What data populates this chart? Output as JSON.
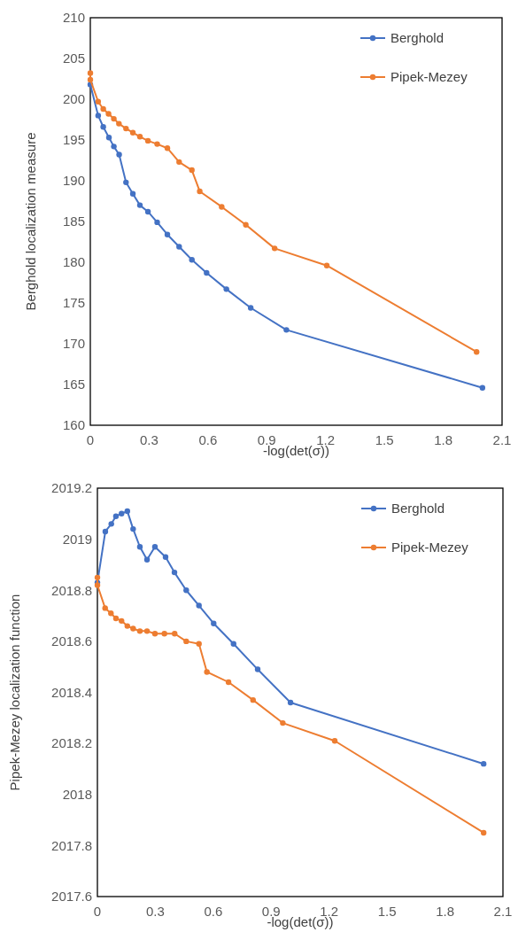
{
  "chart_data": [
    {
      "type": "line",
      "xlabel": "-log(det(σ))",
      "ylabel": "Berghold localization measure",
      "xlim": [
        0,
        2.1
      ],
      "xticks": [
        0,
        0.3,
        0.6,
        0.9,
        1.2,
        1.5,
        1.8,
        2.1
      ],
      "ylim": [
        160,
        210
      ],
      "yticks": [
        160,
        165,
        170,
        175,
        180,
        185,
        190,
        195,
        200,
        205,
        210
      ],
      "grid": false,
      "legend": "top right",
      "marker": "circle",
      "line_style": "solid",
      "series": [
        {
          "name": "Berghold",
          "color": "#4472c4",
          "x": [
            0,
            0.04,
            0.066,
            0.095,
            0.12,
            0.147,
            0.182,
            0.217,
            0.253,
            0.294,
            0.341,
            0.393,
            0.453,
            0.518,
            0.593,
            0.694,
            0.818,
            1.0,
            2.0
          ],
          "values": [
            201.8,
            198.0,
            196.6,
            195.3,
            194.2,
            193.2,
            189.8,
            188.4,
            187.0,
            186.2,
            184.9,
            183.4,
            181.9,
            180.3,
            178.7,
            176.7,
            174.4,
            171.7,
            164.6
          ]
        },
        {
          "name": "Pipek-Mezey",
          "color": "#ed7d31",
          "x": [
            0,
            0,
            0.04,
            0.066,
            0.093,
            0.12,
            0.146,
            0.182,
            0.217,
            0.253,
            0.294,
            0.341,
            0.393,
            0.453,
            0.518,
            0.558,
            0.67,
            0.793,
            0.94,
            1.206,
            1.97
          ],
          "values": [
            203.2,
            202.4,
            199.7,
            198.8,
            198.2,
            197.6,
            197.0,
            196.4,
            195.9,
            195.4,
            194.9,
            194.5,
            194.0,
            192.3,
            191.3,
            188.7,
            186.8,
            184.6,
            181.7,
            179.6,
            169.0
          ]
        }
      ]
    },
    {
      "type": "line",
      "xlabel": "-log(det(σ))",
      "ylabel": "Pipek-Mezey localization function",
      "xlim": [
        0,
        2.1
      ],
      "xticks": [
        0,
        0.3,
        0.6,
        0.9,
        1.2,
        1.5,
        1.8,
        2.1
      ],
      "ylim": [
        2017.6,
        2019.2
      ],
      "yticks": [
        2017.6,
        2017.8,
        2018,
        2018.2,
        2018.4,
        2018.6,
        2018.8,
        2019,
        2019.2
      ],
      "grid": false,
      "legend": "top right",
      "marker": "circle",
      "line_style": "solid",
      "series": [
        {
          "name": "Berghold",
          "color": "#4472c4",
          "x": [
            0,
            0.041,
            0.072,
            0.096,
            0.125,
            0.155,
            0.185,
            0.22,
            0.257,
            0.298,
            0.353,
            0.399,
            0.46,
            0.526,
            0.602,
            0.705,
            0.83,
            1.0,
            2.0
          ],
          "values": [
            2018.83,
            2019.03,
            2019.06,
            2019.09,
            2019.1,
            2019.11,
            2019.04,
            2018.97,
            2018.92,
            2018.97,
            2018.93,
            2018.87,
            2018.8,
            2018.74,
            2018.67,
            2018.59,
            2018.49,
            2018.36,
            2018.12
          ]
        },
        {
          "name": "Pipek-Mezey",
          "color": "#ed7d31",
          "x": [
            0,
            0,
            0.04,
            0.07,
            0.096,
            0.125,
            0.155,
            0.185,
            0.22,
            0.257,
            0.298,
            0.347,
            0.4,
            0.46,
            0.526,
            0.567,
            0.679,
            0.806,
            0.96,
            1.229,
            2.0
          ],
          "values": [
            2018.85,
            2018.82,
            2018.73,
            2018.71,
            2018.69,
            2018.68,
            2018.66,
            2018.65,
            2018.64,
            2018.64,
            2018.63,
            2018.63,
            2018.63,
            2018.6,
            2018.59,
            2018.48,
            2018.44,
            2018.37,
            2018.28,
            2018.21,
            2017.85
          ]
        }
      ]
    }
  ]
}
